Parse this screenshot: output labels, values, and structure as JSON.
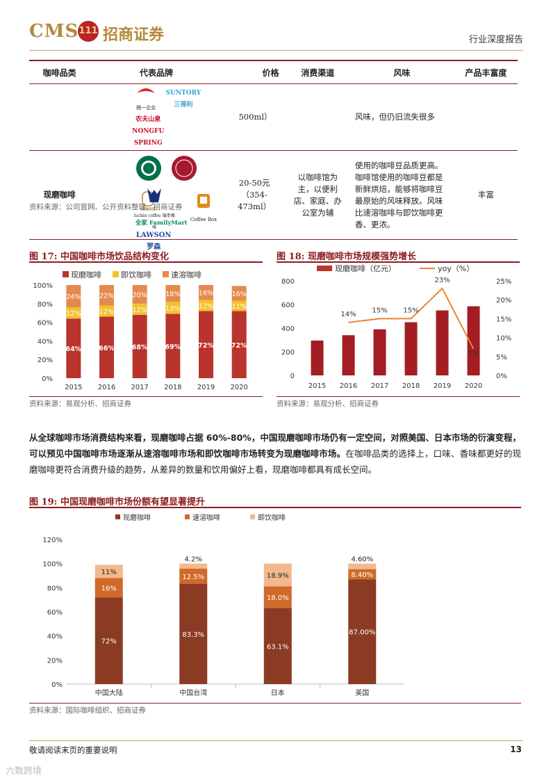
{
  "header": {
    "logo_text": "CMS",
    "logo_badge": "111",
    "logo_cn": "招商证券",
    "report_type": "行业深度报告"
  },
  "table": {
    "headers": [
      "咖啡品类",
      "代表品牌",
      "价格",
      "消费渠道",
      "风味",
      "产品丰富度"
    ],
    "row1": {
      "brands": [
        "统一企业",
        "SUNTORY 三得利",
        "农夫山泉 NONGFU SPRING"
      ],
      "price": "500ml）",
      "flavor": "风味，但仍旧流失很多"
    },
    "row2": {
      "category": "现磨咖啡",
      "brands": [
        "STARBUCKS COFFEE",
        "COSTA COFFEE",
        "上岛咖啡",
        "luckin coffee 瑞幸咖啡",
        "Coffee Box",
        "全家 FamilyMart",
        "LAWSON 罗森"
      ],
      "price": "20-50元（354-473ml）",
      "channel": "以咖啡馆为主，以便利店、家庭、办公室为辅",
      "flavor": "使用的咖啡豆品质更高。咖啡馆使用的咖啡豆都是新鲜烘焙，能够将咖啡豆最原始的风味释放。风味比速溶咖啡与即饮咖啡更香、更浓。",
      "richness": "丰富"
    },
    "source": "资料来源：公司官网、公开资料整理、招商证券"
  },
  "fig17": {
    "title": "图 17:  中国咖啡市场饮品结构变化",
    "source": "资料来源：易观分析、招商证券"
  },
  "fig18": {
    "title": "图 18:  现磨咖啡市场规模强势增长",
    "source": "资料来源：易观分析、招商证券"
  },
  "paragraph": {
    "part1": "从全球咖啡市场消费结构来看，现磨咖啡占据 ",
    "highlight": "60%-80%",
    "part2": "，中国现磨咖啡市场仍有一定空间，对照美国、日本市场的衍演变程，可以预见中国咖啡市场逐渐从速溶咖啡市场和即饮咖啡市场转变为现磨咖啡市场。",
    "part3": "在咖啡品类的选择上，口味、香味都更好的现磨咖啡更符合消费升级的趋势，从差异的数量和饮用偏好上看，现磨咖啡都具有成长空间。"
  },
  "fig19": {
    "title": "图 19:  中国现磨咖啡市场份额有望显著提升",
    "source": "资料来源：国际咖啡组织、招商证券"
  },
  "footer": {
    "note": "敬请阅读末页的重要说明",
    "page": "13",
    "watermark": "六数跨境"
  },
  "colors": {
    "brand_red": "#8b1b1e",
    "fresh": "#b8342c",
    "rtd": "#f2c12e",
    "instant": "#e58a4e",
    "fig19_fresh": "#8b3a24",
    "fig19_instant": "#d06a2a",
    "fig19_rtd": "#f2b98e",
    "yoy_line": "#e7852f"
  },
  "chart_data": [
    {
      "id": "fig17",
      "type": "bar",
      "stacked": true,
      "categories": [
        "2015",
        "2016",
        "2017",
        "2018",
        "2019",
        "2020"
      ],
      "series": [
        {
          "name": "现磨咖啡",
          "values": [
            64,
            66,
            68,
            69,
            72,
            72
          ],
          "labels": [
            "64%",
            "66%",
            "68%",
            "69%",
            "72%",
            "72%"
          ]
        },
        {
          "name": "即饮咖啡",
          "values": [
            12,
            12,
            12,
            13,
            12,
            11
          ],
          "labels": [
            "12%",
            "12%",
            "12%",
            "13%",
            "12%",
            "11%"
          ]
        },
        {
          "name": "速溶咖啡",
          "values": [
            24,
            22,
            20,
            18,
            16,
            16
          ],
          "labels": [
            "24%",
            "22%",
            "20%",
            "18%",
            "16%",
            "16%"
          ]
        }
      ],
      "yticks": [
        "0%",
        "20%",
        "40%",
        "60%",
        "80%",
        "100%"
      ],
      "ylim": [
        0,
        100
      ],
      "legend": "top"
    },
    {
      "id": "fig18",
      "type": "bar",
      "categories": [
        "2015",
        "2016",
        "2017",
        "2018",
        "2019",
        "2020"
      ],
      "series": [
        {
          "name": "现磨咖啡（亿元）",
          "type": "bar",
          "values": [
            295,
            340,
            390,
            450,
            550,
            585
          ]
        },
        {
          "name": "yoy（%）",
          "type": "line",
          "axis": "right",
          "values": [
            null,
            14,
            15,
            15,
            23,
            7
          ],
          "labels": [
            "",
            "14%",
            "15%",
            "15%",
            "23%",
            "7%"
          ]
        }
      ],
      "yticks_left": [
        "0",
        "200",
        "400",
        "600",
        "800"
      ],
      "yticks_right": [
        "0%",
        "5%",
        "10%",
        "15%",
        "20%",
        "25%"
      ],
      "ylim_left": [
        0,
        800
      ],
      "ylim_right": [
        0,
        25
      ],
      "legend": "top"
    },
    {
      "id": "fig19",
      "type": "bar",
      "stacked": true,
      "categories": [
        "中国大陆",
        "中国台湾",
        "日本",
        "美国"
      ],
      "series": [
        {
          "name": "现磨咖啡",
          "values": [
            72,
            83.3,
            63.1,
            87.0
          ],
          "labels": [
            "72%",
            "83.3%",
            "63.1%",
            "87.00%"
          ]
        },
        {
          "name": "速溶咖啡",
          "values": [
            16,
            12.5,
            18.0,
            8.4
          ],
          "labels": [
            "16%",
            "12.5%",
            "18.0%",
            "8.40%"
          ]
        },
        {
          "name": "即饮咖啡",
          "values": [
            11,
            4.2,
            18.9,
            4.6
          ],
          "labels": [
            "11%",
            "4.2%",
            "18.9%",
            "4.60%"
          ]
        }
      ],
      "yticks": [
        "0%",
        "20%",
        "40%",
        "60%",
        "80%",
        "100%",
        "120%"
      ],
      "ylim": [
        0,
        120
      ],
      "legend": "top"
    }
  ]
}
